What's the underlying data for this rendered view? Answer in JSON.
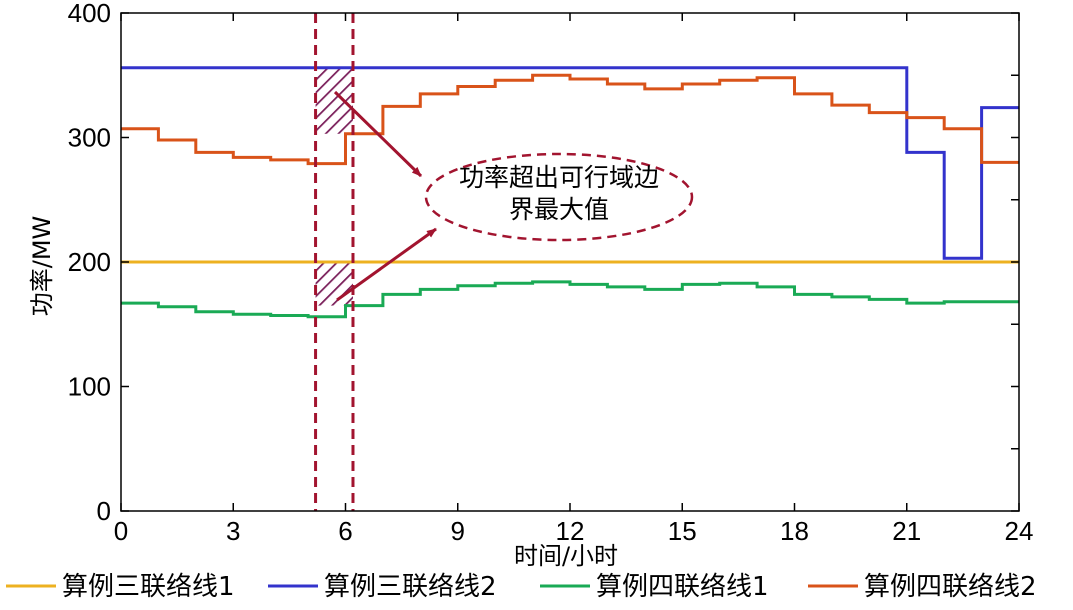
{
  "chart_data": {
    "type": "line",
    "step": true,
    "xlabel": "时间/小时",
    "ylabel": "功率/MW",
    "xlim": [
      0,
      24
    ],
    "ylim": [
      0,
      400
    ],
    "xticks": [
      0,
      3,
      6,
      9,
      12,
      15,
      18,
      21,
      24
    ],
    "yticks": [
      0,
      100,
      200,
      300,
      400
    ],
    "grid": false,
    "legend_position": "bottom",
    "series": [
      {
        "name": "算例三联络线1",
        "color": "#EDB120",
        "values": [
          200,
          200,
          200,
          200,
          200,
          200,
          200,
          200,
          200,
          200,
          200,
          200,
          200,
          200,
          200,
          200,
          200,
          200,
          200,
          200,
          200,
          200,
          200,
          200
        ]
      },
      {
        "name": "算例三联络线2",
        "color": "#3333CC",
        "values": [
          356,
          356,
          356,
          356,
          356,
          356,
          356,
          356,
          356,
          356,
          356,
          356,
          356,
          356,
          356,
          356,
          356,
          356,
          356,
          356,
          356,
          288,
          203,
          324
        ]
      },
      {
        "name": "算例四联络线1",
        "color": "#1AAA55",
        "values": [
          167,
          164,
          160,
          158,
          157,
          156,
          165,
          174,
          178,
          181,
          183,
          184,
          182,
          180,
          178,
          182,
          183,
          180,
          174,
          172,
          170,
          167,
          168,
          168
        ]
      },
      {
        "name": "算例四联络线2",
        "color": "#D95319",
        "values": [
          307,
          298,
          288,
          284,
          282,
          279,
          303,
          325,
          335,
          341,
          346,
          350,
          347,
          343,
          339,
          343,
          346,
          348,
          335,
          326,
          320,
          316,
          307,
          280
        ]
      }
    ],
    "annotations": [
      {
        "type": "vline",
        "x": 5.2,
        "color": "#A2142F",
        "style": "dashed"
      },
      {
        "type": "vline",
        "x": 6.2,
        "color": "#A2142F",
        "style": "dashed"
      },
      {
        "type": "hatch",
        "x0": 5.2,
        "x1": 6.2,
        "y0": 303,
        "y1": 356
      },
      {
        "type": "hatch",
        "x0": 5.2,
        "x1": 6.2,
        "y0": 165,
        "y1": 200
      },
      {
        "type": "callout",
        "text": [
          "功率超出可行域边",
          "界最大值"
        ]
      }
    ]
  }
}
